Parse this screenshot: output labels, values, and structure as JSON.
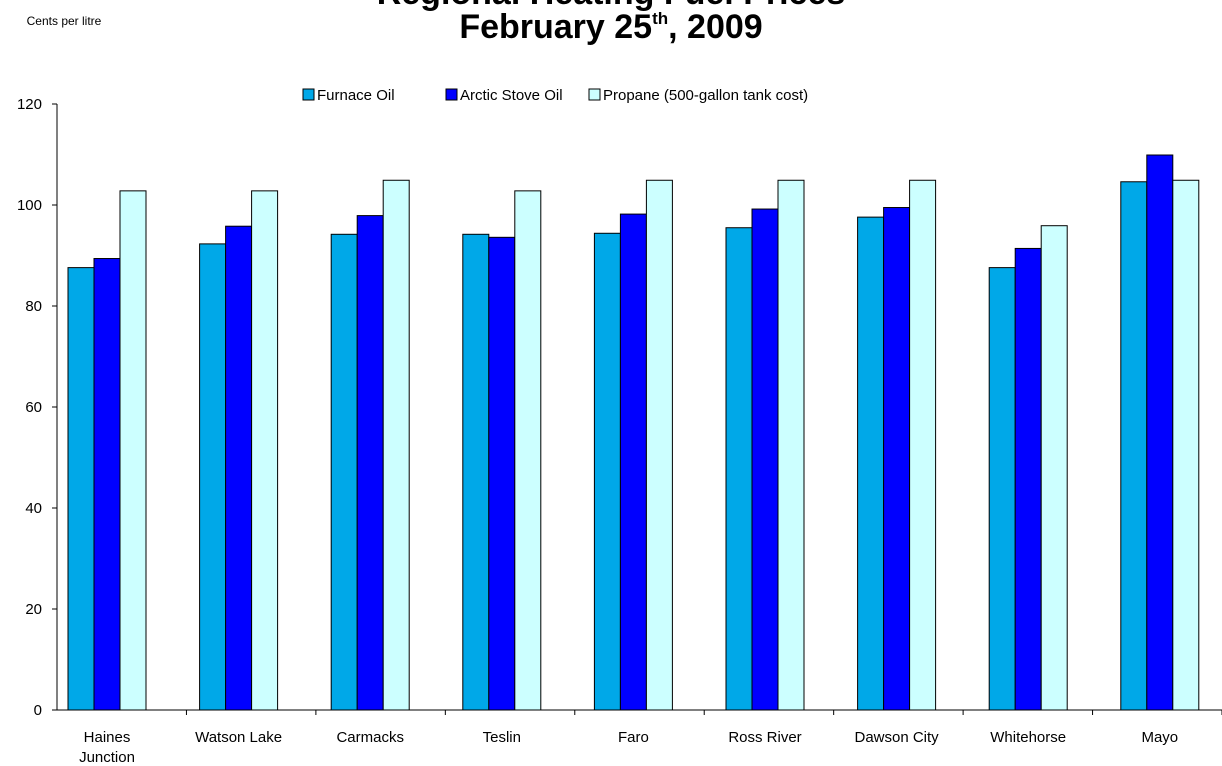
{
  "title_line1": "Regional Heating Fuel Prices",
  "title_line2": {
    "prefix": "February 25",
    "sup": "th",
    "suffix": ", 2009"
  },
  "chart_data": {
    "type": "bar",
    "ylabel": "Cents per litre",
    "xlabel": "",
    "ylim": [
      0,
      120
    ],
    "yticks": [
      0,
      20,
      40,
      60,
      80,
      100,
      120
    ],
    "grid": false,
    "legend_position": "top",
    "categories": [
      [
        "Haines",
        "Junction"
      ],
      [
        "Watson Lake"
      ],
      [
        "Carmacks"
      ],
      [
        "Teslin"
      ],
      [
        "Faro"
      ],
      [
        "Ross River"
      ],
      [
        "Dawson City"
      ],
      [
        "Whitehorse"
      ],
      [
        "Mayo"
      ]
    ],
    "series": [
      {
        "name": "Furnace Oil",
        "color": "#00a8e8",
        "values": [
          87.6,
          92.3,
          94.2,
          94.2,
          94.4,
          95.5,
          97.6,
          87.6,
          104.6
        ]
      },
      {
        "name": "Arctic Stove Oil",
        "color": "#0000ff",
        "values": [
          89.4,
          95.8,
          97.9,
          93.6,
          98.2,
          99.2,
          99.5,
          91.4,
          109.9
        ]
      },
      {
        "name": "Propane (500-gallon tank cost)",
        "color": "#ccffff",
        "values": [
          102.8,
          102.8,
          104.9,
          102.8,
          104.9,
          104.9,
          104.9,
          95.9,
          104.9
        ]
      }
    ]
  }
}
